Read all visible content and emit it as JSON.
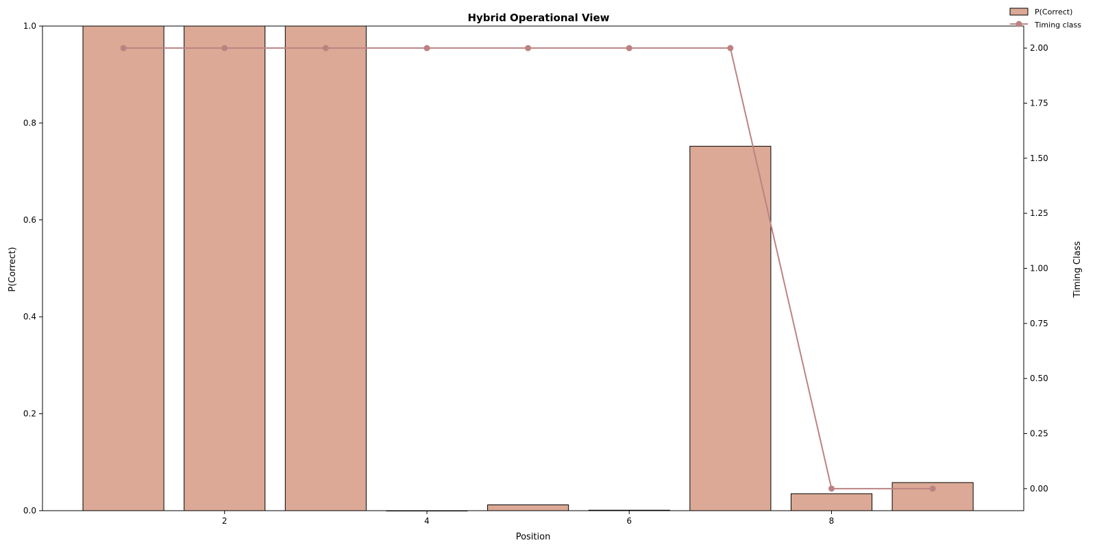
{
  "chart_data": {
    "type": "bar",
    "title": "Hybrid Operational View",
    "xlabel": "Position",
    "ylabel": "P(Correct)",
    "y2label": "Timing Class",
    "x": [
      1,
      2,
      3,
      4,
      5,
      6,
      7,
      8,
      9
    ],
    "xlim": [
      0.2,
      9.9
    ],
    "ylim": [
      0,
      1
    ],
    "y2lim": [
      -0.1,
      2.1
    ],
    "xticks": [
      2,
      4,
      6,
      8
    ],
    "xtick_labels": [
      "2",
      "4",
      "6",
      "8"
    ],
    "yticks": [
      0.0,
      0.2,
      0.4,
      0.6,
      0.8,
      1.0
    ],
    "ytick_labels": [
      "0.0",
      "0.2",
      "0.4",
      "0.6",
      "0.8",
      "1.0"
    ],
    "y2ticks": [
      0.0,
      0.25,
      0.5,
      0.75,
      1.0,
      1.25,
      1.5,
      1.75,
      2.0
    ],
    "y2tick_labels": [
      "0.00",
      "0.25",
      "0.50",
      "0.75",
      "1.00",
      "1.25",
      "1.50",
      "1.75",
      "2.00"
    ],
    "grid": false,
    "legend_position": "top-right",
    "series": [
      {
        "name": "P(Correct)",
        "kind": "bar",
        "axis": "left",
        "color": "#dba995",
        "edge_color": "#000000",
        "values": [
          1.0,
          1.0,
          1.0,
          0.0,
          0.012,
          0.001,
          0.752,
          0.035,
          0.058
        ]
      },
      {
        "name": "Timing class",
        "kind": "line",
        "axis": "right",
        "marker": "circle",
        "color": "#bc8282",
        "values": [
          2,
          2,
          2,
          2,
          2,
          2,
          2,
          0,
          0
        ]
      }
    ]
  }
}
